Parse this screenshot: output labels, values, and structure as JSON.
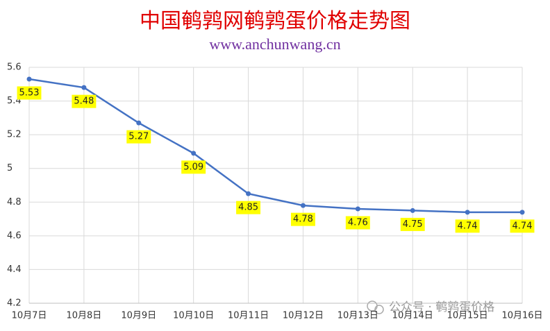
{
  "chart_data": {
    "type": "line",
    "title": "中国鹌鹑网鹌鹑蛋价格走势图",
    "subtitle": "www.anchunwang.cn",
    "watermark": "公众号 · 鹌鹑蛋价格",
    "categories": [
      "10月7日",
      "10月8日",
      "10月9日",
      "10月10日",
      "10月11日",
      "10月12日",
      "10月13日",
      "10月14日",
      "10月15日",
      "10月16日"
    ],
    "series": [
      {
        "name": "价格",
        "color": "#4472c4",
        "values": [
          5.53,
          5.48,
          5.27,
          5.09,
          4.85,
          4.78,
          4.76,
          4.75,
          4.74,
          4.74
        ]
      }
    ],
    "ylim": [
      4.2,
      5.6
    ],
    "yticks": [
      4.2,
      4.4,
      4.6,
      4.8,
      5,
      5.2,
      5.4,
      5.6
    ],
    "grid": true,
    "label_color": "#ffff00"
  }
}
